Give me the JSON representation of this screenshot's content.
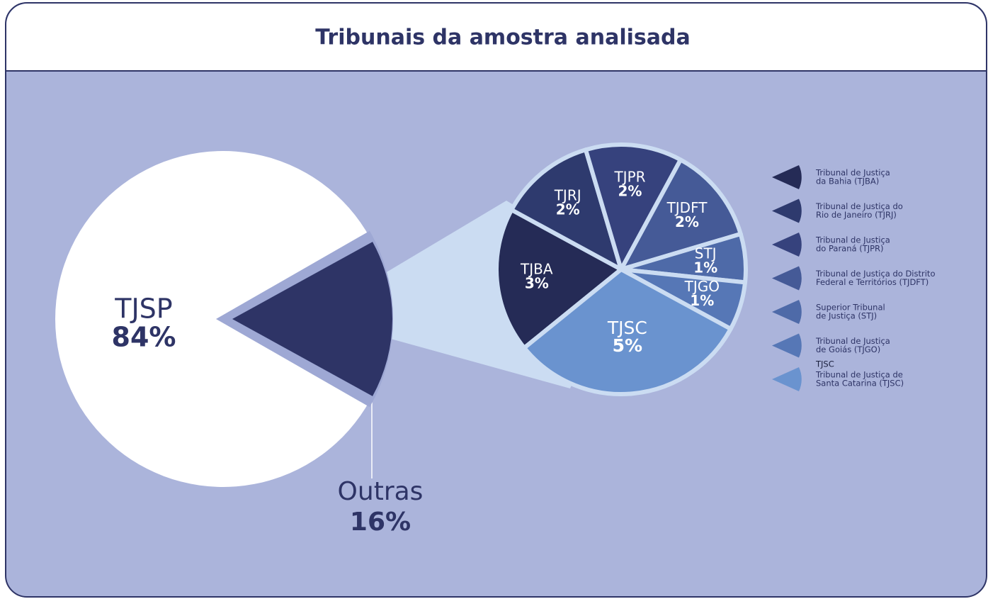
{
  "chart_data": {
    "type": "pie-of-pie",
    "title": "Tribunais da amostra analisada",
    "categories": [
      "TJSP",
      "Outras"
    ],
    "values": [
      84,
      16
    ],
    "value_labels": [
      "84%",
      "16%"
    ],
    "colors": [
      "#ffffff",
      "#2e3466"
    ],
    "sub": {
      "categories": [
        "TJBA",
        "TJRJ",
        "TJPR",
        "TJDFT",
        "STJ",
        "TJGO",
        "TJSC"
      ],
      "values": [
        3,
        2,
        2,
        2,
        1,
        1,
        5
      ],
      "value_labels": [
        "3%",
        "2%",
        "2%",
        "2%",
        "1%",
        "1%",
        "5%"
      ],
      "colors": [
        "#252b56",
        "#2e3a6e",
        "#36427d",
        "#455a97",
        "#4e6aa8",
        "#5677b6",
        "#6a93cf"
      ],
      "legend": [
        [
          "Tribunal de Justiça",
          "da Bahia (TJBA)"
        ],
        [
          "Tribunal de Justiça do",
          "Rio de Janeiro (TJRJ)"
        ],
        [
          "Tribunal de Justiça",
          "do Paraná (TJPR)"
        ],
        [
          "Tribunal de Justiça do Distrito",
          "Federal e Territórios (TJDFT)"
        ],
        [
          "Superior Tribunal",
          "de Justiça (STJ)"
        ],
        [
          "Tribunal de Justiça",
          "de Goiás (TJGO)"
        ],
        [
          "Tribunal de Justiça de",
          "Santa Catarina (TJSC)"
        ]
      ]
    },
    "annotation": "TJSC"
  }
}
